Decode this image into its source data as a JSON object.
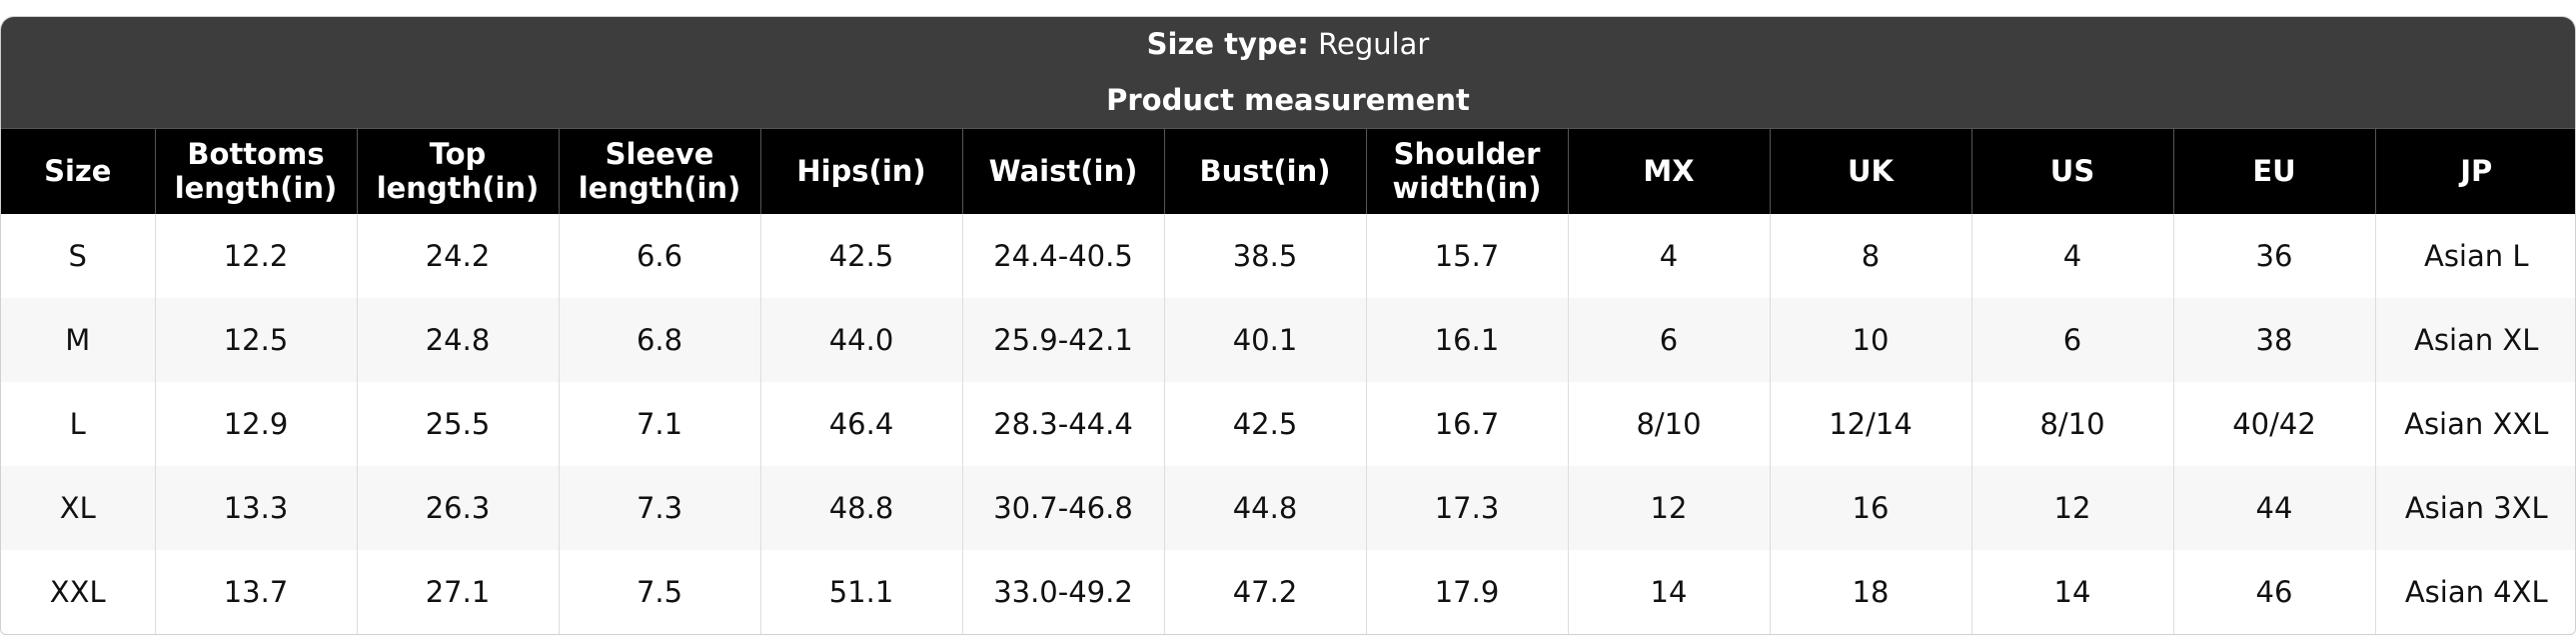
{
  "header": {
    "size_type_label": "Size type:",
    "size_type_value": "Regular",
    "subtitle": "Product measurement"
  },
  "table": {
    "columns": [
      "Size",
      "Bottoms length(in)",
      "Top length(in)",
      "Sleeve length(in)",
      "Hips(in)",
      "Waist(in)",
      "Bust(in)",
      "Shoulder width(in)",
      "MX",
      "UK",
      "US",
      "EU",
      "JP"
    ],
    "rows": [
      [
        "S",
        "12.2",
        "24.2",
        "6.6",
        "42.5",
        "24.4-40.5",
        "38.5",
        "15.7",
        "4",
        "8",
        "4",
        "36",
        "Asian L"
      ],
      [
        "M",
        "12.5",
        "24.8",
        "6.8",
        "44.0",
        "25.9-42.1",
        "40.1",
        "16.1",
        "6",
        "10",
        "6",
        "38",
        "Asian XL"
      ],
      [
        "L",
        "12.9",
        "25.5",
        "7.1",
        "46.4",
        "28.3-44.4",
        "42.5",
        "16.7",
        "8/10",
        "12/14",
        "8/10",
        "40/42",
        "Asian XXL"
      ],
      [
        "XL",
        "13.3",
        "26.3",
        "7.3",
        "48.8",
        "30.7-46.8",
        "44.8",
        "17.3",
        "12",
        "16",
        "12",
        "44",
        "Asian 3XL"
      ],
      [
        "XXL",
        "13.7",
        "27.1",
        "7.5",
        "51.1",
        "33.0-49.2",
        "47.2",
        "17.9",
        "14",
        "18",
        "14",
        "46",
        "Asian 4XL"
      ]
    ]
  }
}
